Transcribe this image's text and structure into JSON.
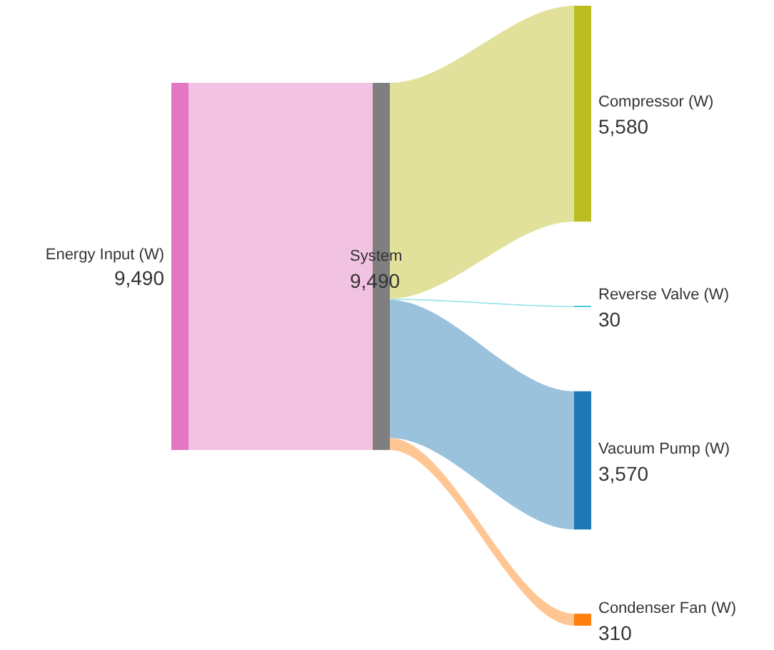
{
  "chart_data": {
    "type": "other",
    "categories": [
      "Energy Input (W)",
      "System",
      "Compressor (W)",
      "Reverse Valve (W)",
      "Vacuum Pump (W)",
      "Condenser Fan (W)"
    ],
    "values": [
      9490,
      9490,
      5580,
      30,
      3570,
      310
    ],
    "value_labels": [
      "9,490",
      "9,490",
      "5,580",
      "30",
      "3,570",
      "310"
    ],
    "colors": [
      "#e377c2",
      "#7f7f7f",
      "#bcbd22",
      "#17becf",
      "#1f77b4",
      "#ff7f0e"
    ]
  }
}
